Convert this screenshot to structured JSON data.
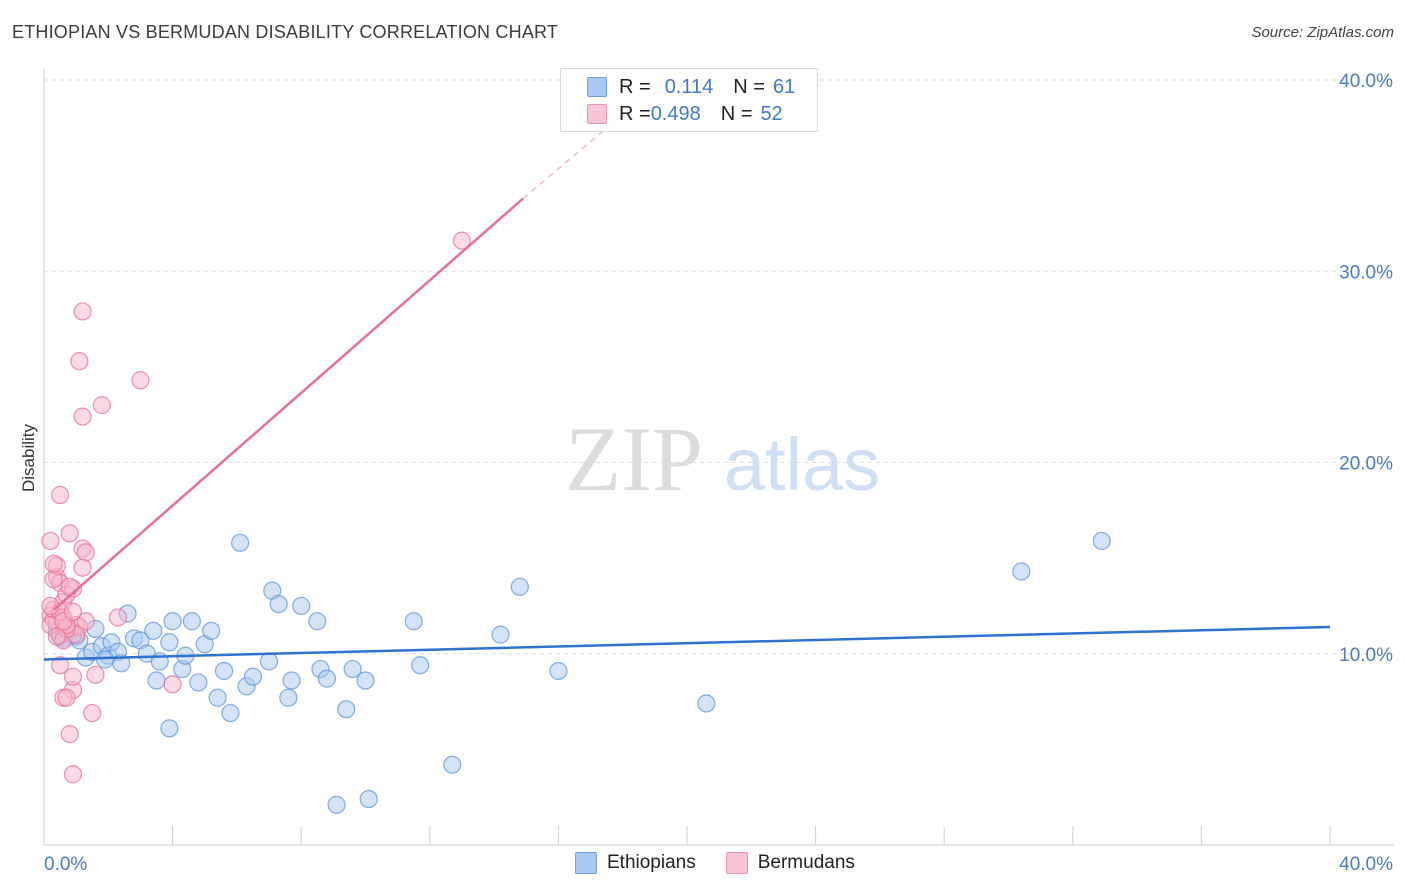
{
  "header": {
    "title": "ETHIOPIAN VS BERMUDAN DISABILITY CORRELATION CHART",
    "source": "Source: ZipAtlas.com"
  },
  "watermark": {
    "part1": "ZIP",
    "part2": "atlas"
  },
  "legend": {
    "rows": [
      {
        "r_label": "R = ",
        "r_value": "0.114",
        "n_label": "N = ",
        "n_value": "61",
        "color": "#a9c8f2"
      },
      {
        "r_label": "R = ",
        "r_value": "0.498",
        "n_label": "N = ",
        "n_value": "52",
        "color": "#f7b6c9"
      }
    ]
  },
  "bottom_legend": {
    "items": [
      "Ethiopians",
      "Bermudans"
    ]
  },
  "chart_data": {
    "type": "scatter",
    "title": "ETHIOPIAN VS BERMUDAN DISABILITY CORRELATION CHART",
    "xlabel": "",
    "ylabel": "Disability",
    "xlim": [
      0,
      40
    ],
    "ylim": [
      0,
      40
    ],
    "x_tick_labels": [
      "0.0%",
      "40.0%"
    ],
    "y_ticks": [
      10,
      20,
      30,
      40
    ],
    "y_tick_labels": [
      "10.0%",
      "20.0%",
      "30.0%",
      "40.0%"
    ],
    "grid": "horizontal dashed",
    "series": [
      {
        "name": "Ethiopians",
        "color": "#5b93de",
        "fill": "#a9c8f2",
        "r": 0.114,
        "n": 61,
        "trend": {
          "x": [
            0,
            40
          ],
          "y": [
            9.7,
            11.4
          ]
        },
        "points": [
          [
            0.4,
            11.2
          ],
          [
            0.5,
            10.9
          ],
          [
            0.6,
            10.8
          ],
          [
            0.8,
            11.2
          ],
          [
            1.0,
            10.9
          ],
          [
            1.1,
            10.7
          ],
          [
            1.3,
            9.8
          ],
          [
            1.5,
            10.1
          ],
          [
            1.6,
            11.3
          ],
          [
            1.8,
            10.4
          ],
          [
            2.0,
            9.9
          ],
          [
            2.1,
            10.6
          ],
          [
            2.3,
            10.1
          ],
          [
            2.4,
            9.5
          ],
          [
            2.6,
            12.1
          ],
          [
            2.8,
            10.8
          ],
          [
            3.0,
            10.7
          ],
          [
            3.2,
            10.0
          ],
          [
            3.4,
            11.2
          ],
          [
            3.5,
            8.6
          ],
          [
            3.6,
            9.6
          ],
          [
            3.9,
            10.6
          ],
          [
            4.0,
            11.7
          ],
          [
            4.3,
            9.2
          ],
          [
            4.4,
            9.9
          ],
          [
            4.6,
            11.7
          ],
          [
            4.8,
            8.5
          ],
          [
            5.0,
            10.5
          ],
          [
            5.2,
            11.2
          ],
          [
            5.4,
            7.7
          ],
          [
            5.6,
            9.1
          ],
          [
            5.8,
            6.9
          ],
          [
            6.1,
            15.8
          ],
          [
            6.3,
            8.3
          ],
          [
            6.5,
            8.8
          ],
          [
            7.0,
            9.6
          ],
          [
            7.1,
            13.3
          ],
          [
            7.3,
            12.6
          ],
          [
            7.6,
            7.7
          ],
          [
            7.7,
            8.6
          ],
          [
            8.0,
            12.5
          ],
          [
            8.5,
            11.7
          ],
          [
            8.6,
            9.2
          ],
          [
            8.8,
            8.7
          ],
          [
            9.6,
            9.2
          ],
          [
            10.0,
            8.6
          ],
          [
            11.5,
            11.7
          ],
          [
            11.7,
            9.4
          ],
          [
            9.1,
            2.1
          ],
          [
            10.1,
            2.4
          ],
          [
            12.7,
            4.2
          ],
          [
            9.4,
            7.1
          ],
          [
            3.9,
            6.1
          ],
          [
            14.2,
            11.0
          ],
          [
            14.8,
            13.5
          ],
          [
            16.0,
            9.1
          ],
          [
            20.6,
            7.4
          ],
          [
            30.4,
            14.3
          ],
          [
            32.9,
            15.9
          ],
          [
            0.9,
            11.0
          ],
          [
            1.9,
            9.7
          ]
        ]
      },
      {
        "name": "Bermudans",
        "color": "#e86e95",
        "fill": "#f7b6c9",
        "r": 0.498,
        "n": 52,
        "trend": {
          "x": [
            0.3,
            14.9
          ],
          "y": [
            12.3,
            33.8
          ]
        },
        "trend_dashed": {
          "x": [
            14.9,
            18.0
          ],
          "y": [
            33.8,
            38.2
          ]
        },
        "points": [
          [
            0.2,
            12.0
          ],
          [
            0.3,
            11.8
          ],
          [
            0.3,
            12.3
          ],
          [
            0.4,
            11.6
          ],
          [
            0.4,
            14.0
          ],
          [
            0.5,
            11.0
          ],
          [
            0.5,
            13.7
          ],
          [
            0.6,
            12.7
          ],
          [
            0.6,
            11.9
          ],
          [
            0.7,
            13.1
          ],
          [
            0.8,
            11.3
          ],
          [
            0.9,
            13.4
          ],
          [
            1.0,
            11.5
          ],
          [
            1.1,
            11.4
          ],
          [
            1.2,
            15.5
          ],
          [
            1.3,
            15.3
          ],
          [
            0.2,
            15.9
          ],
          [
            0.4,
            14.6
          ],
          [
            0.8,
            16.3
          ],
          [
            0.5,
            18.3
          ],
          [
            1.2,
            14.5
          ],
          [
            0.5,
            9.4
          ],
          [
            0.6,
            10.7
          ],
          [
            0.9,
            8.1
          ],
          [
            0.6,
            7.7
          ],
          [
            0.7,
            7.7
          ],
          [
            0.9,
            8.8
          ],
          [
            1.6,
            8.9
          ],
          [
            1.5,
            6.9
          ],
          [
            0.8,
            5.8
          ],
          [
            0.9,
            3.7
          ],
          [
            1.3,
            11.7
          ],
          [
            1.0,
            11.0
          ],
          [
            0.7,
            11.3
          ],
          [
            1.1,
            25.3
          ],
          [
            1.2,
            22.4
          ],
          [
            1.8,
            23.0
          ],
          [
            1.2,
            27.9
          ],
          [
            3.0,
            24.3
          ],
          [
            2.3,
            11.9
          ],
          [
            4.0,
            8.4
          ],
          [
            13.0,
            31.6
          ],
          [
            0.2,
            11.5
          ],
          [
            0.3,
            13.9
          ],
          [
            0.7,
            11.5
          ],
          [
            0.5,
            12.2
          ],
          [
            0.3,
            14.7
          ],
          [
            0.4,
            10.9
          ],
          [
            0.6,
            11.7
          ],
          [
            0.8,
            13.5
          ],
          [
            0.9,
            12.2
          ],
          [
            0.2,
            12.5
          ]
        ]
      }
    ]
  }
}
